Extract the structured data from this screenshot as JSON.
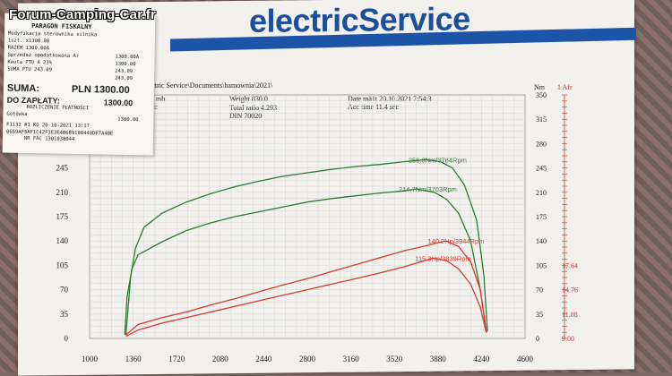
{
  "watermark": "Forum-Camping-Car.fr",
  "logo": "electricService",
  "header": {
    "path": "electric Service\\Documents\\hamownia\\2021\\",
    "mb": "013 mb",
    "c": "5.0 c",
    "weight": "Weight   830.0",
    "total_ratio": "Total ratio 4.293",
    "din": "DIN 70020",
    "date": "Date mä1t 20.10.2021 7:54:3",
    "acc_time": "Acc time   11.4 sec"
  },
  "receipt": {
    "brand": "electricService",
    "lines": [
      "Modyfikacja sterownika silnika",
      "1szt.   x1300.00",
      "RAZEM                 1300.00A",
      "Sprzedaż opodatkowana A:",
      "Kwota PTU A 23%",
      "SUMA PTU                 243.09"
    ],
    "title": "PARAGON FISKALNY",
    "right_vals": [
      "1300.00A",
      "1300.00",
      "243.09",
      "243.09"
    ],
    "suma_label": "SUMA:",
    "suma_value": "PLN 1300.00",
    "zaplaty_label": "DO ZAPŁATY:",
    "zaplaty_value": "1300.00",
    "rozliczenie": "ROZLICZENIE PŁATNOŚCI",
    "gotowka": "Gotówka",
    "gotowka_value": "1300.00",
    "footer1": "F1132 #1 KO          20-10-2021 13:17",
    "footer2": "0659AF5AF1C42F1E3E4B6B9188440DF7A4BE",
    "footer3": "NR FAC 1301038044"
  },
  "chart_data": {
    "type": "line",
    "x_ticks": [
      1000,
      1360,
      1720,
      2080,
      2440,
      2800,
      3160,
      3520,
      3880,
      4240,
      4600
    ],
    "xlim": [
      1000,
      4600
    ],
    "y_left_ticks": [
      0,
      35,
      70,
      105,
      140,
      175,
      210,
      245,
      280
    ],
    "ylim": [
      0,
      350
    ],
    "y_right_nm_label": "Nm",
    "y_right_nm_ticks": [
      0,
      35,
      70,
      105,
      140,
      175,
      210,
      245,
      280,
      315,
      350
    ],
    "y_afr_label": "1 Afr",
    "afr_ticks": [
      {
        "value": "17.64",
        "nm": 105
      },
      {
        "value": "14.76",
        "nm": 70
      },
      {
        "value": "11.88",
        "nm": 35
      },
      {
        "value": "9.00",
        "nm": 0
      }
    ],
    "annotations": [
      {
        "text": "256.8Nm/3784Rpm",
        "series": "torque_modified",
        "color": "#2e7d32",
        "x": 3784,
        "y": 256.8
      },
      {
        "text": "214.7Nm/3703Rpm",
        "series": "torque_stock",
        "color": "#2e7d32",
        "x": 3703,
        "y": 214.7
      },
      {
        "text": "140.2Hp/3944Rpm",
        "series": "power_modified",
        "color": "#d33b2c",
        "x": 3944,
        "y": 140.2
      },
      {
        "text": "115.3Hp/3839Rpm",
        "series": "power_stock",
        "color": "#d33b2c",
        "x": 3839,
        "y": 115.3
      }
    ],
    "series": [
      {
        "id": "torque_modified",
        "color": "#2e7d32",
        "x": [
          1300,
          1340,
          1380,
          1450,
          1600,
          1800,
          2000,
          2200,
          2400,
          2600,
          2800,
          3000,
          3200,
          3400,
          3600,
          3784,
          3900,
          4000,
          4100,
          4200,
          4260,
          4290
        ],
        "y": [
          5,
          90,
          130,
          160,
          180,
          196,
          208,
          218,
          226,
          233,
          238,
          243,
          247,
          250,
          254,
          256.8,
          254,
          245,
          220,
          170,
          90,
          10
        ]
      },
      {
        "id": "torque_stock",
        "color": "#2e7d32",
        "x": [
          1290,
          1310,
          1350,
          1400,
          1600,
          1800,
          2000,
          2200,
          2400,
          2600,
          2800,
          3000,
          3200,
          3400,
          3600,
          3703,
          3850,
          3950,
          4050,
          4150,
          4230,
          4280
        ],
        "y": [
          5,
          60,
          100,
          120,
          139,
          155,
          166,
          175,
          182,
          189,
          196,
          201,
          205,
          209,
          212,
          214.7,
          210,
          200,
          180,
          140,
          70,
          10
        ]
      },
      {
        "id": "power_modified",
        "color": "#d33b2c",
        "x": [
          1300,
          1400,
          1600,
          1800,
          2000,
          2200,
          2400,
          2600,
          2800,
          3000,
          3200,
          3400,
          3600,
          3800,
          3944,
          4050,
          4150,
          4230,
          4280
        ],
        "y": [
          5,
          20,
          30,
          38,
          48,
          57,
          67,
          77,
          86,
          96,
          106,
          116,
          126,
          134,
          140.2,
          132,
          110,
          70,
          10
        ]
      },
      {
        "id": "power_stock",
        "color": "#d33b2c",
        "x": [
          1300,
          1400,
          1600,
          1800,
          2000,
          2200,
          2400,
          2600,
          2800,
          3000,
          3200,
          3400,
          3600,
          3839,
          3950,
          4050,
          4150,
          4230,
          4280
        ],
        "y": [
          3,
          12,
          22,
          30,
          38,
          46,
          54,
          62,
          70,
          78,
          86,
          94,
          103,
          115.3,
          112,
          100,
          78,
          45,
          8
        ]
      }
    ]
  }
}
